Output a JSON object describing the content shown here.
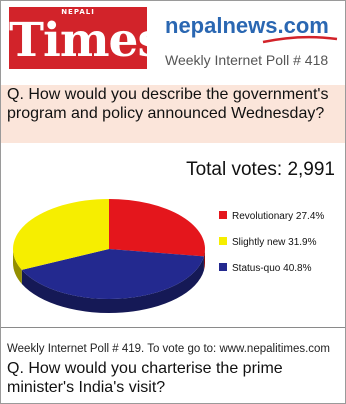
{
  "header": {
    "logo_small": "NEPALI",
    "logo_main": "Times",
    "brand": "nepalnews.com",
    "poll_title": "Weekly Internet Poll # 418"
  },
  "question": "Q. How would you describe the government's program and policy announced Wednesday?",
  "total_votes_text": "Total votes: 2,991",
  "colors": {
    "accent_red": "#d2232a",
    "brand_blue": "#2a67b2",
    "question_bg": "#fbe5da"
  },
  "chart_data": {
    "type": "pie",
    "title": "",
    "total_votes": 2991,
    "legend_position": "right",
    "slices": [
      {
        "label": "Revolutionary 27.4%",
        "category": "Revolutionary",
        "value": 27.4,
        "color": "#e4161c"
      },
      {
        "label": "Slightly new 31.9%",
        "category": "Slightly new",
        "value": 31.9,
        "color": "#f6ee00"
      },
      {
        "label": "Status-quo 40.8%",
        "category": "Status-quo",
        "value": 40.8,
        "color": "#23298f"
      }
    ]
  },
  "next_poll": {
    "info": "Weekly Internet Poll # 419. To vote go to: www.nepalitimes.com",
    "question": "Q. How would you charterise the prime minister's India's visit?"
  }
}
